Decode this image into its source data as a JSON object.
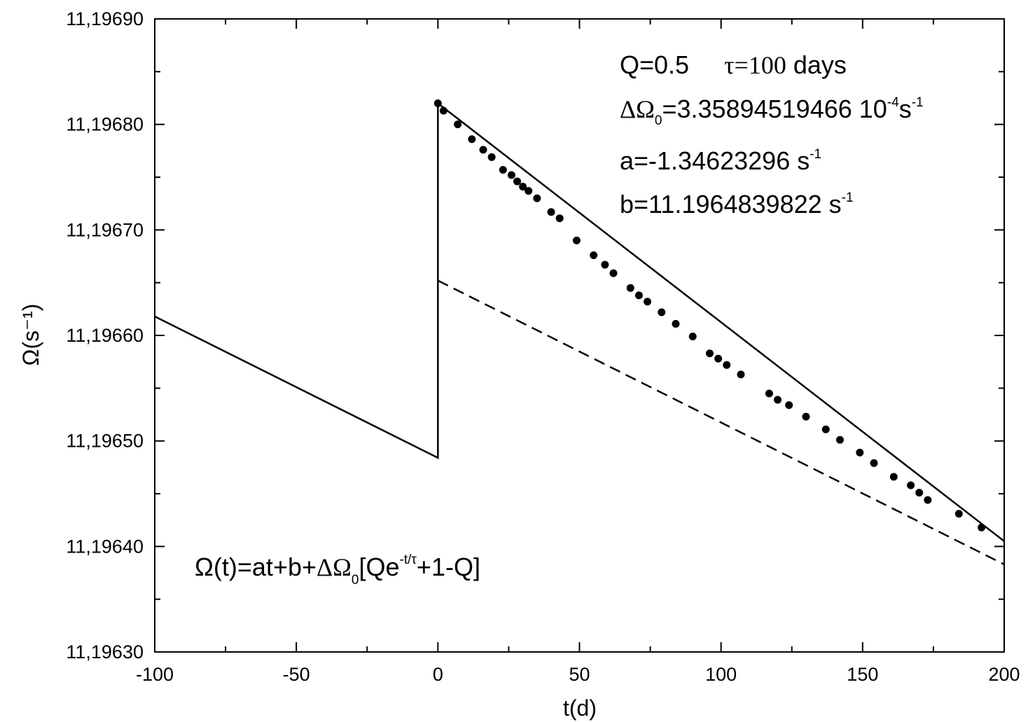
{
  "chart_data": {
    "type": "line",
    "xlabel": "t(d)",
    "ylabel": "Ω(s⁻¹)",
    "xlim": [
      -100,
      200
    ],
    "ylim": [
      11.1963,
      11.1969
    ],
    "x_ticks": [
      "-100",
      "-50",
      "0",
      "50",
      "100",
      "150",
      "200"
    ],
    "y_ticks": [
      "11,19630",
      "11,19640",
      "11,19650",
      "11,19660",
      "11,19670",
      "11,19680",
      "11,19690"
    ],
    "grid": false,
    "parameters": {
      "Q": 0.5,
      "tau_days": 100,
      "delta_omega0": 0.000335894519466,
      "a": -1.34623296,
      "b": 11.1964839822
    },
    "annotations": {
      "q_text": "Q=0.5",
      "tau_symbol": "τ",
      "tau_text": "=100",
      "tau_unit": "days",
      "delta_symbol": "ΔΩ",
      "delta_sub": "0",
      "delta_text": "=3.35894519466 10",
      "delta_exp": "-4",
      "delta_unit": "s",
      "delta_unit_exp": "-1",
      "a_text": "a=-1.34623296 s",
      "a_exp": "-1",
      "b_text": "b=11.1964839822 s",
      "b_exp": "-1",
      "formula_lhs": "Ω(t)=at+b+",
      "formula_delta": "ΔΩ",
      "formula_sub": "0",
      "formula_mid": "[Qe",
      "formula_exp": "-t/τ",
      "formula_rhs": "+1-Q]"
    },
    "series": [
      {
        "style": "solid",
        "x": [
          -100,
          0,
          0,
          200
        ],
        "y": [
          11.196618,
          11.196484,
          11.19682,
          11.196405
        ]
      },
      {
        "style": "dashed",
        "x": [
          0,
          200
        ],
        "y": [
          11.196652,
          11.196383
        ]
      },
      {
        "style": "markers",
        "x": [
          0,
          2,
          7,
          12,
          16,
          19,
          23,
          26,
          28,
          30,
          32,
          35,
          40,
          43,
          49,
          55,
          59,
          62,
          68,
          71,
          74,
          79,
          84,
          90,
          96,
          99,
          102,
          107,
          117,
          120,
          124,
          130,
          137,
          142,
          149,
          154,
          161,
          167,
          170,
          173,
          184,
          192
        ],
        "y": [
          11.19682,
          11.196813,
          11.1968,
          11.196786,
          11.196776,
          11.196769,
          11.196757,
          11.196752,
          11.196746,
          11.196741,
          11.196737,
          11.19673,
          11.196717,
          11.196711,
          11.19669,
          11.196676,
          11.196667,
          11.196659,
          11.196645,
          11.196638,
          11.196632,
          11.196622,
          11.196611,
          11.196599,
          11.196583,
          11.196578,
          11.196572,
          11.196563,
          11.196545,
          11.196539,
          11.196534,
          11.196523,
          11.196511,
          11.196501,
          11.196489,
          11.196479,
          11.196466,
          11.196458,
          11.196451,
          11.196444,
          11.196431,
          11.196418
        ]
      }
    ]
  }
}
